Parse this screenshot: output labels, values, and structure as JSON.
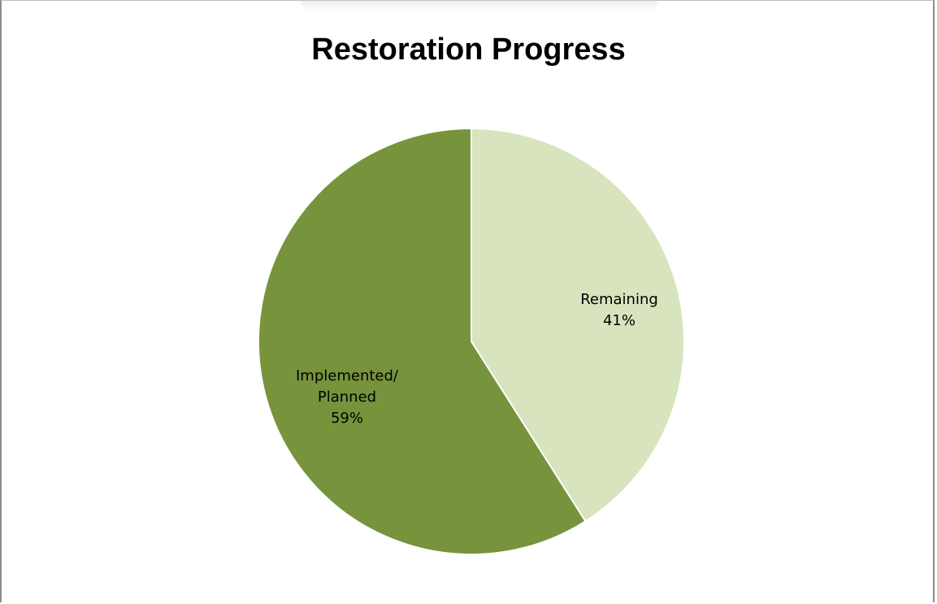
{
  "chart_data": {
    "type": "pie",
    "title": "Restoration Progress",
    "slices": [
      {
        "label": "Remaining",
        "value": 41,
        "percent_label": "41%",
        "color": "#d7e4bd"
      },
      {
        "label": "Implemented/ Planned",
        "label_lines": [
          "Implemented/",
          "Planned"
        ],
        "value": 59,
        "percent_label": "59%",
        "color": "#77933c"
      }
    ],
    "start": "12 o'clock",
    "direction": "clockwise",
    "legend": "none"
  }
}
